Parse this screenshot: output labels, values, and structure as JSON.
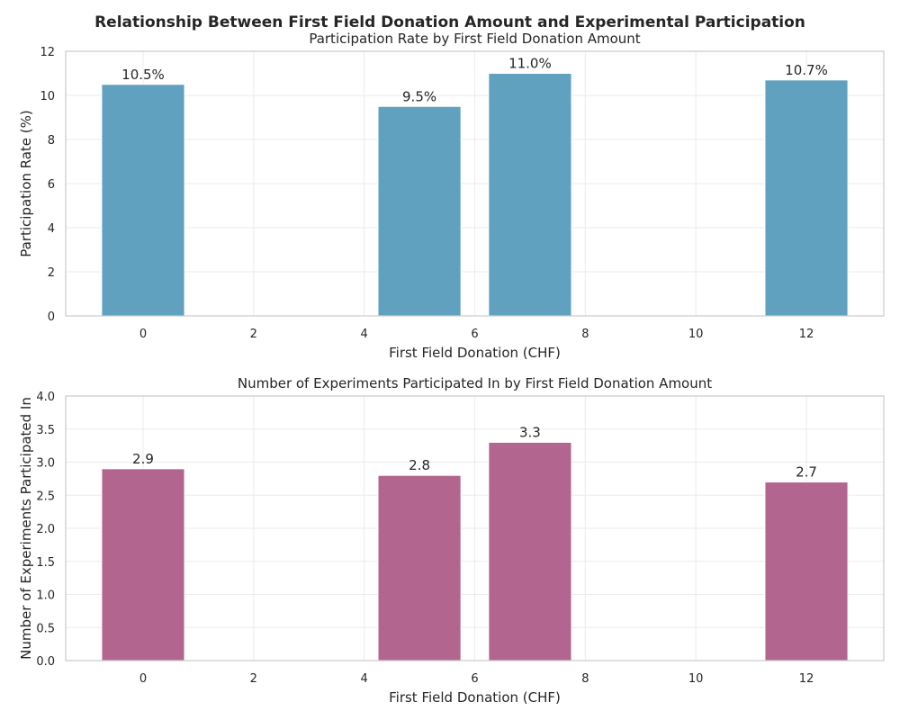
{
  "figure": {
    "suptitle": "Relationship Between First Field Donation Amount and Experimental Participation"
  },
  "chart_data": [
    {
      "type": "bar",
      "title": "Participation Rate by First Field Donation Amount",
      "xlabel": "First Field Donation (CHF)",
      "ylabel": "Participation Rate (%)",
      "x": [
        0,
        5,
        7,
        12
      ],
      "values": [
        10.5,
        9.5,
        11.0,
        10.7
      ],
      "value_labels": [
        "10.5%",
        "9.5%",
        "11.0%",
        "10.7%"
      ],
      "bar_width": 1.5,
      "xlim": [
        -1.4,
        13.4
      ],
      "ylim": [
        0,
        12
      ],
      "xticks": [
        0,
        2,
        4,
        6,
        8,
        10,
        12
      ],
      "xtick_labels": [
        "0",
        "2",
        "4",
        "6",
        "8",
        "10",
        "12"
      ],
      "yticks": [
        0,
        2,
        4,
        6,
        8,
        10,
        12
      ],
      "ytick_labels": [
        "0",
        "2",
        "4",
        "6",
        "8",
        "10",
        "12"
      ],
      "color": "#5a9ebd",
      "grid": true
    },
    {
      "type": "bar",
      "title": "Number of Experiments Participated In by First Field Donation Amount",
      "xlabel": "First Field Donation (CHF)",
      "ylabel": "Number of Experiments Participated In",
      "x": [
        0,
        5,
        7,
        12
      ],
      "values": [
        2.9,
        2.8,
        3.3,
        2.7
      ],
      "value_labels": [
        "2.9",
        "2.8",
        "3.3",
        "2.7"
      ],
      "bar_width": 1.5,
      "xlim": [
        -1.4,
        13.4
      ],
      "ylim": [
        0,
        4.0
      ],
      "xticks": [
        0,
        2,
        4,
        6,
        8,
        10,
        12
      ],
      "xtick_labels": [
        "0",
        "2",
        "4",
        "6",
        "8",
        "10",
        "12"
      ],
      "yticks": [
        0,
        0.5,
        1.0,
        1.5,
        2.0,
        2.5,
        3.0,
        3.5,
        4.0
      ],
      "ytick_labels": [
        "0.0",
        "0.5",
        "1.0",
        "1.5",
        "2.0",
        "2.5",
        "3.0",
        "3.5",
        "4.0"
      ],
      "color": "#b0618b",
      "grid": true
    }
  ]
}
